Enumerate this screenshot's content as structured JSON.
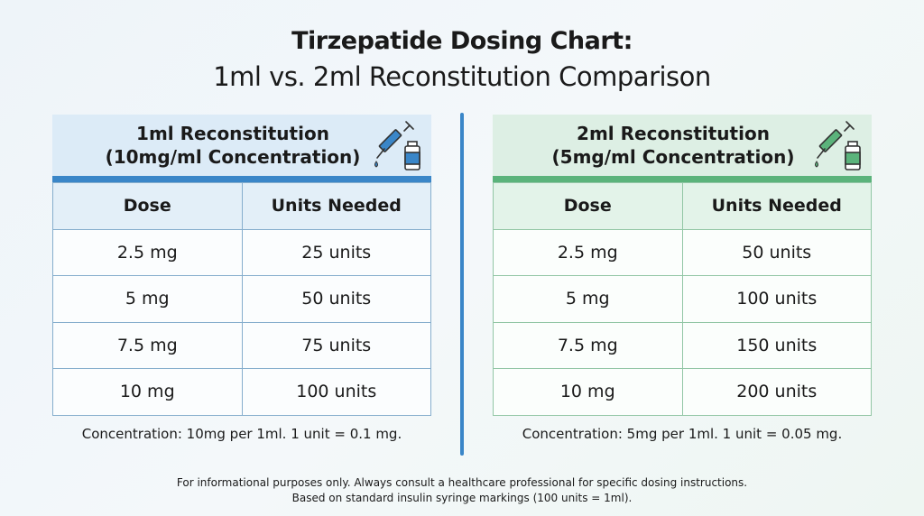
{
  "title": "Tirzepatide Dosing Chart:",
  "subtitle": "1ml vs. 2ml Reconstitution Comparison",
  "colors": {
    "left_accent": "#3a86c8",
    "right_accent": "#5bb37b"
  },
  "panels": [
    {
      "heading_line1": "1ml Reconstitution",
      "heading_line2": "(10mg/ml Concentration)",
      "icon": "syringe-vial-icon",
      "columns": [
        "Dose",
        "Units Needed"
      ],
      "rows": [
        [
          "2.5 mg",
          "25 units"
        ],
        [
          "5 mg",
          "50 units"
        ],
        [
          "7.5 mg",
          "75 units"
        ],
        [
          "10 mg",
          "100 units"
        ]
      ],
      "note": "Concentration: 10mg per 1ml. 1 unit = 0.1 mg."
    },
    {
      "heading_line1": "2ml Reconstitution",
      "heading_line2": "(5mg/ml Concentration)",
      "icon": "syringe-vial-icon",
      "columns": [
        "Dose",
        "Units Needed"
      ],
      "rows": [
        [
          "2.5 mg",
          "50 units"
        ],
        [
          "5 mg",
          "100 units"
        ],
        [
          "7.5 mg",
          "150 units"
        ],
        [
          "10 mg",
          "200 units"
        ]
      ],
      "note": "Concentration: 5mg per 1ml. 1 unit = 0.05 mg."
    }
  ],
  "footer": {
    "line1": "For informational purposes only. Always consult a healthcare professional for specific dosing instructions.",
    "line2": "Based on standard insulin syringe markings (100 units = 1ml)."
  }
}
